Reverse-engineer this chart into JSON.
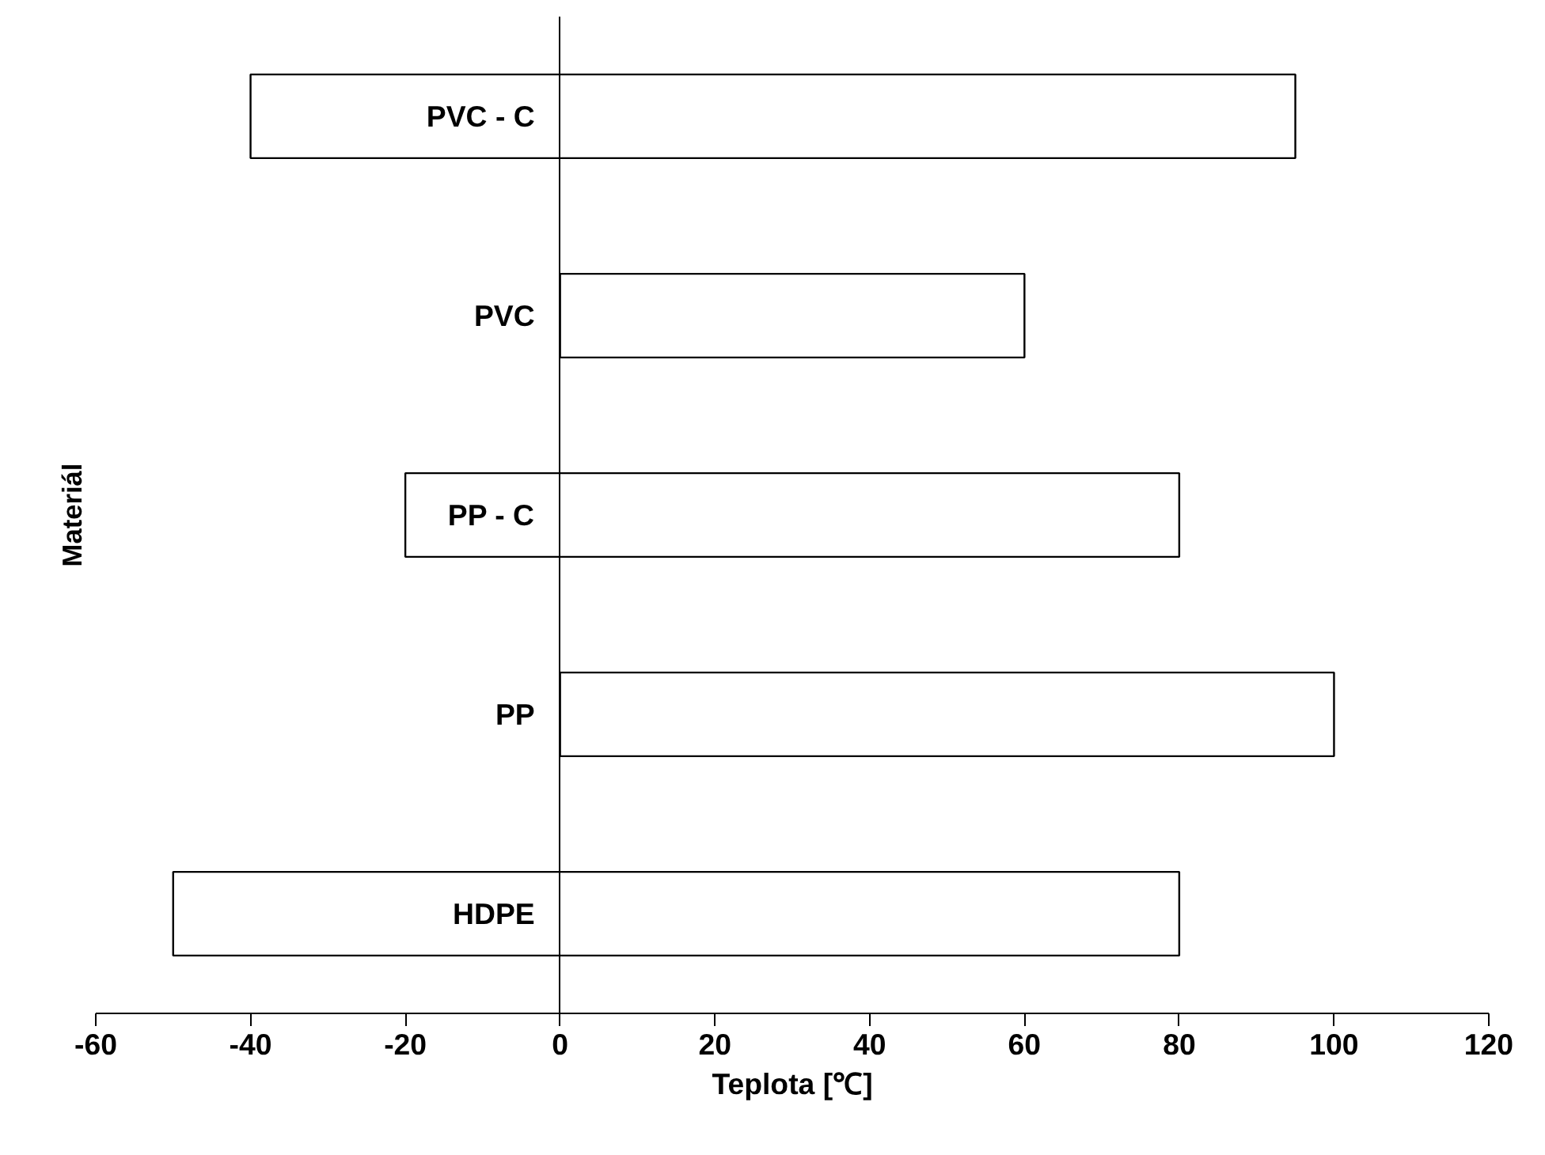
{
  "chart_data": {
    "type": "bar",
    "orientation": "horizontal",
    "xlabel": "Teplota [℃]",
    "ylabel": "Materiál",
    "categories": [
      "PVC - C",
      "PVC",
      "PP - C",
      "PP",
      "HDPE"
    ],
    "base": [
      -40,
      0,
      -20,
      0,
      -50
    ],
    "values": [
      135,
      60,
      100,
      100,
      130
    ],
    "color": "#ffffff",
    "xlim": [
      -60,
      120
    ],
    "xticks": [
      -60,
      -40,
      -20,
      0,
      20,
      40,
      60,
      80,
      100,
      120
    ],
    "grid": false
  }
}
